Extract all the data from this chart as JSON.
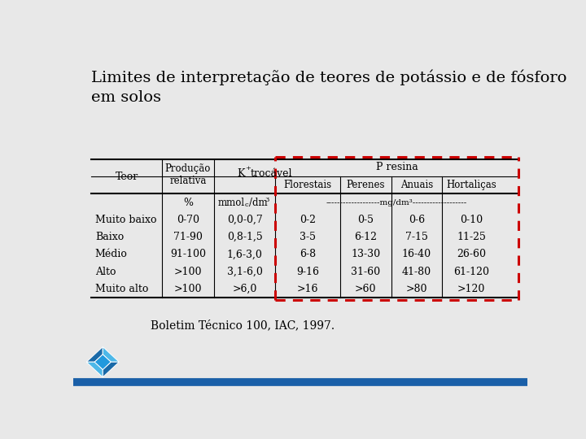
{
  "title": "Limites de interpretação de teores de potássio e de fósforo\nem solos",
  "subtitle": "Boletim Técnico 100, IAC, 1997.",
  "background_color": "#e8e8e8",
  "data_rows": [
    [
      "Muito baixo",
      "0-70",
      "0,0-0,7",
      "0-2",
      "0-5",
      "0-6",
      "0-10"
    ],
    [
      "Baixo",
      "71-90",
      "0,8-1,5",
      "3-5",
      "6-12",
      "7-15",
      "11-25"
    ],
    [
      "Médio",
      "91-100",
      "1,6-3,0",
      "6-8",
      "13-30",
      "16-40",
      "26-60"
    ],
    [
      "Alto",
      ">100",
      "3,1-6,0",
      "9-16",
      "31-60",
      "41-80",
      "61-120"
    ],
    [
      "Muito alto",
      ">100",
      ">6,0",
      ">16",
      ">60",
      ">80",
      ">120"
    ]
  ],
  "dashed_border_color": "#cc0000",
  "table_line_color": "#000000",
  "text_color": "#000000",
  "bottom_line_color": "#1a5fa8",
  "logo_color1": "#1a6aa8",
  "logo_color2": "#4db8e8"
}
